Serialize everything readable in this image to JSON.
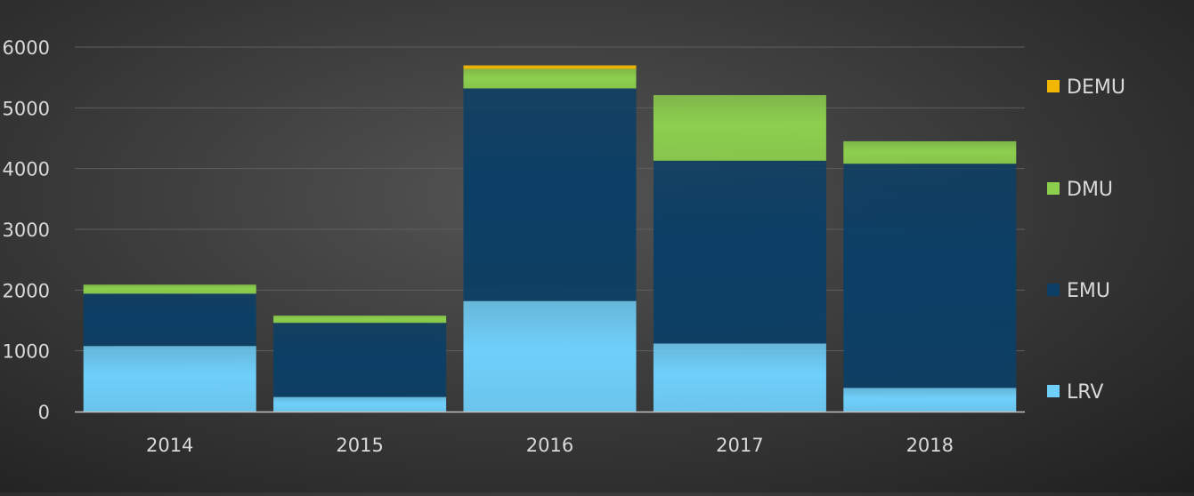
{
  "chart_data": {
    "type": "bar",
    "stacked": true,
    "categories": [
      "2014",
      "2015",
      "2016",
      "2017",
      "2018"
    ],
    "series": [
      {
        "name": "LRV",
        "color": "#6fd0fb",
        "values": [
          1080,
          240,
          1820,
          1120,
          390
        ]
      },
      {
        "name": "EMU",
        "color": "#0b3f66",
        "values": [
          860,
          1220,
          3500,
          3010,
          3690
        ]
      },
      {
        "name": "DMU",
        "color": "#8ccf4d",
        "values": [
          150,
          120,
          320,
          1080,
          370
        ]
      },
      {
        "name": "DEMU",
        "color": "#f2b705",
        "values": [
          0,
          0,
          60,
          0,
          0
        ]
      }
    ],
    "ylim": [
      0,
      6000
    ],
    "yticks": [
      "0",
      "1000",
      "2000",
      "3000",
      "4000",
      "5000",
      "6000"
    ],
    "grid": true,
    "legend_position": "right"
  }
}
